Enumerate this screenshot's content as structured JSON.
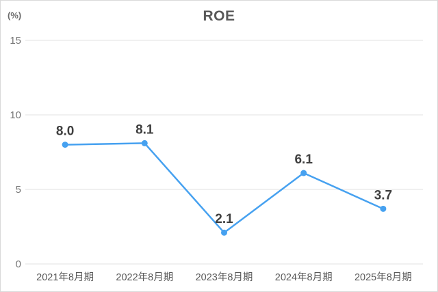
{
  "chart": {
    "title": "ROE",
    "unit_label": "(%)"
  },
  "chart_data": {
    "type": "line",
    "title": "ROE",
    "unit": "(%)",
    "categories": [
      "2021年8月期",
      "2022年8月期",
      "2023年8月期",
      "2024年8月期",
      "2025年8月期"
    ],
    "values": [
      8.0,
      8.1,
      2.1,
      6.1,
      3.7
    ],
    "value_labels": [
      "8.0",
      "8.1",
      "2.1",
      "6.1",
      "3.7"
    ],
    "ylim": [
      0,
      15
    ],
    "yticks": [
      0,
      5,
      10,
      15
    ],
    "grid": true,
    "legend": "none",
    "colors": {
      "line": "#46a1f0",
      "marker": "#46a1f0",
      "grid": "#ececec",
      "title": "#595959",
      "y_tick": "#767676",
      "x_tick": "#595959",
      "data_label": "#3f3f3f",
      "border": "#d9d9d9"
    }
  }
}
